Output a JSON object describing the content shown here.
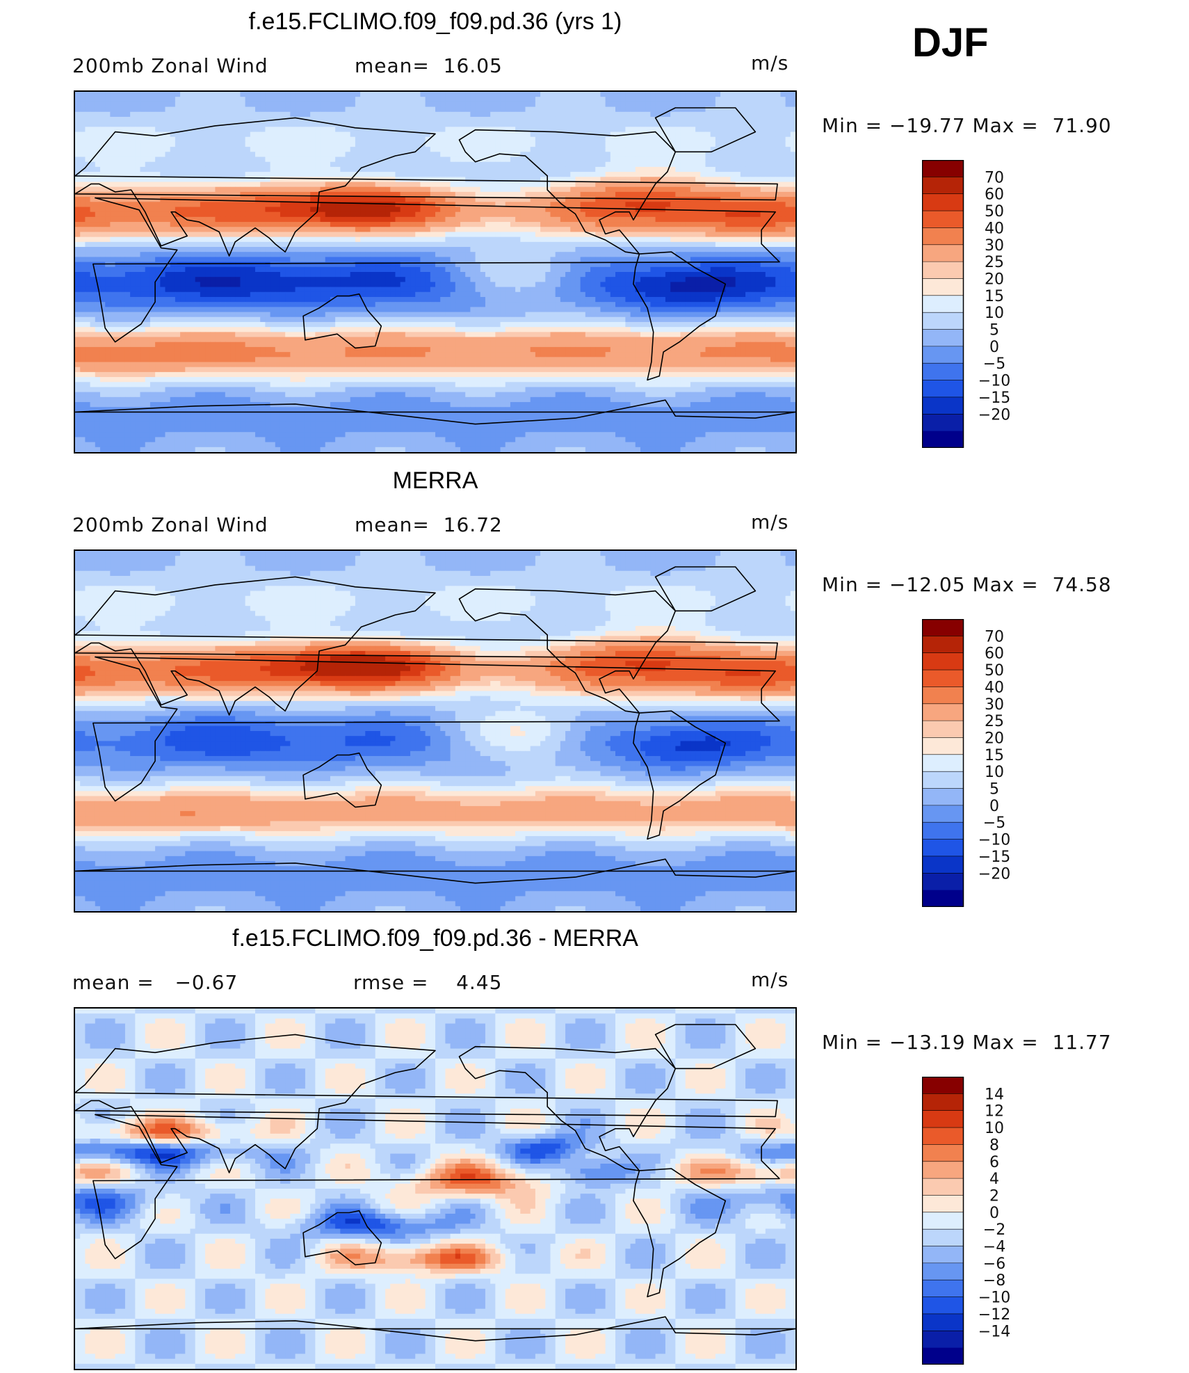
{
  "season": "DJF",
  "units": "m/s",
  "colors": {
    "wind_scale": [
      "#00008b",
      "#0a1fa8",
      "#0a35c8",
      "#1f55e6",
      "#3f74ee",
      "#6796f2",
      "#93b6f7",
      "#bcd6fb",
      "#ddeefe",
      "#fde8d8",
      "#fbcab0",
      "#f7a67f",
      "#f1814f",
      "#ea5a2a",
      "#d83a13",
      "#b52407",
      "#870000"
    ],
    "diff_scale": [
      "#00008b",
      "#0a1fa8",
      "#0a35c8",
      "#1f55e6",
      "#3f74ee",
      "#6796f2",
      "#93b6f7",
      "#bcd6fb",
      "#ddeefe",
      "#fde8d8",
      "#fbcab0",
      "#f7a67f",
      "#f1814f",
      "#ea5a2a",
      "#d83a13",
      "#b52407",
      "#870000"
    ]
  },
  "chart_data": [
    {
      "type": "heatmap",
      "title": "f.e15.FCLIMO.f09_f09.pd.36 (yrs 1)",
      "left_label": "200mb Zonal Wind",
      "stat_label": "mean=  16.05",
      "units": "m/s",
      "minmax": "Min = −19.77 Max =  71.90",
      "min": -19.77,
      "max": 71.9,
      "mean": 16.05,
      "colorbar_levels": [
        "70",
        "60",
        "50",
        "40",
        "30",
        "25",
        "20",
        "15",
        "10",
        "5",
        "0",
        "−5",
        "−10",
        "−15",
        "−20"
      ]
    },
    {
      "type": "heatmap",
      "title": "MERRA",
      "left_label": "200mb Zonal Wind",
      "stat_label": "mean=  16.72",
      "units": "m/s",
      "minmax": "Min = −12.05 Max =  74.58",
      "min": -12.05,
      "max": 74.58,
      "mean": 16.72,
      "colorbar_levels": [
        "70",
        "60",
        "50",
        "40",
        "30",
        "25",
        "20",
        "15",
        "10",
        "5",
        "0",
        "−5",
        "−10",
        "−15",
        "−20"
      ]
    },
    {
      "type": "heatmap",
      "title": "f.e15.FCLIMO.f09_f09.pd.36 - MERRA",
      "left_label": "mean =   −0.67",
      "stat_label": "rmse =    4.45",
      "units": "m/s",
      "minmax": "Min = −13.19 Max =  11.77",
      "min": -13.19,
      "max": 11.77,
      "mean": -0.67,
      "rmse": 4.45,
      "colorbar_levels": [
        "14",
        "12",
        "10",
        "8",
        "6",
        "4",
        "2",
        "0",
        "−2",
        "−4",
        "−6",
        "−8",
        "−10",
        "−12",
        "−14"
      ]
    }
  ]
}
